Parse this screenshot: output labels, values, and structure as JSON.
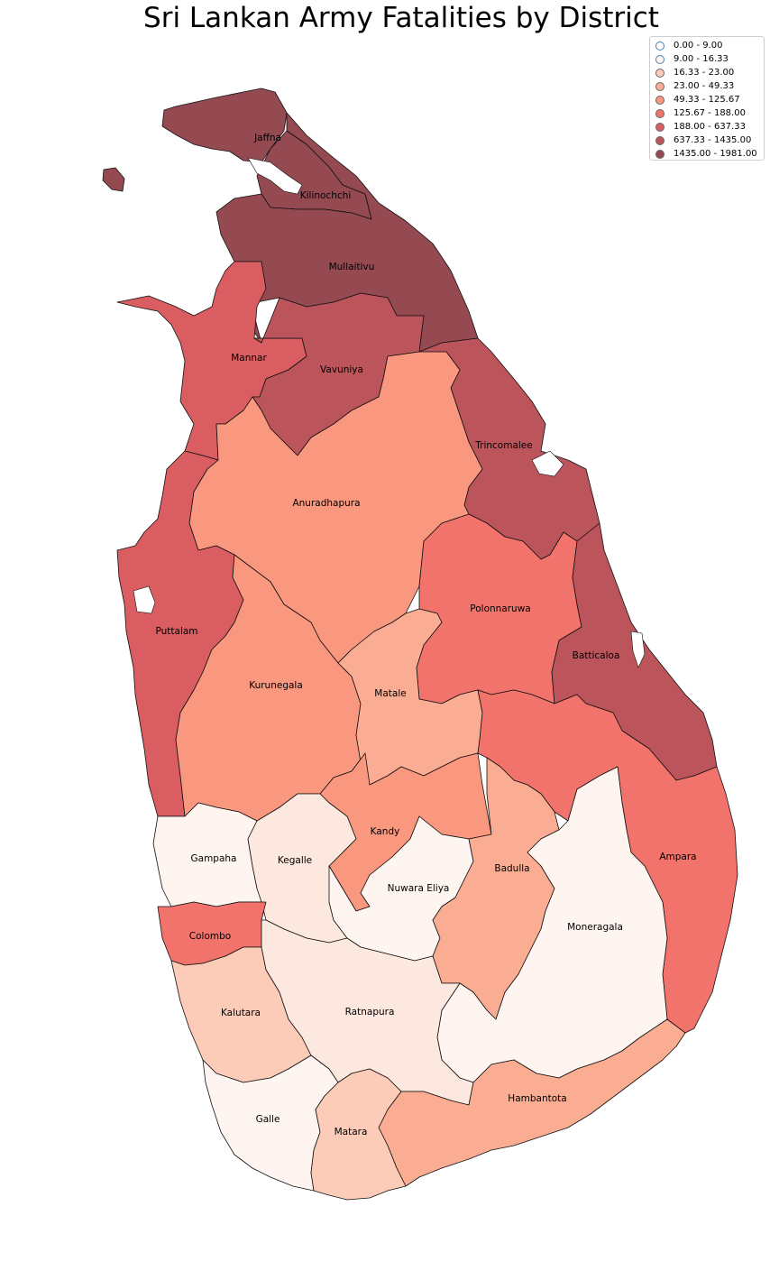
{
  "title": "Sri Lankan Army Fatalities by District",
  "legend": [
    {
      "label": "0.00 - 9.00",
      "color": "#ffffff"
    },
    {
      "label": "9.00 - 16.33",
      "color": "#fff5f0"
    },
    {
      "label": "16.33 - 23.00",
      "color": "#fcccb8"
    },
    {
      "label": "23.00 - 49.33",
      "color": "#fbad93"
    },
    {
      "label": "49.33 - 125.67",
      "color": "#fa977f"
    },
    {
      "label": "125.67 - 188.00",
      "color": "#f2736b"
    },
    {
      "label": "188.00 - 637.33",
      "color": "#da5d62"
    },
    {
      "label": "637.33 - 1435.00",
      "color": "#bc555b"
    },
    {
      "label": "1435.00 - 1981.00",
      "color": "#954a52"
    }
  ],
  "districts": {
    "jaffna": {
      "name": "Jaffna",
      "color": "#954a52"
    },
    "kilinochchi": {
      "name": "Kilinochchi",
      "color": "#954a52"
    },
    "mullaitivu": {
      "name": "Mullaitivu",
      "color": "#954a52"
    },
    "mannar": {
      "name": "Mannar",
      "color": "#da5d62"
    },
    "vavuniya": {
      "name": "Vavuniya",
      "color": "#bc555b"
    },
    "trincomalee": {
      "name": "Trincomalee",
      "color": "#bc555b"
    },
    "anuradhapura": {
      "name": "Anuradhapura",
      "color": "#fa977f"
    },
    "puttalam": {
      "name": "Puttalam",
      "color": "#da5d62"
    },
    "polonnaruwa": {
      "name": "Polonnaruwa",
      "color": "#f2736b"
    },
    "batticaloa": {
      "name": "Batticaloa",
      "color": "#bc555b"
    },
    "kurunegala": {
      "name": "Kurunegala",
      "color": "#fa977f"
    },
    "matale": {
      "name": "Matale",
      "color": "#fbad93"
    },
    "kandy": {
      "name": "Kandy",
      "color": "#fa977f"
    },
    "ampara": {
      "name": "Ampara",
      "color": "#f2736b"
    },
    "gampaha": {
      "name": "Gampaha",
      "color": "#fff5f0"
    },
    "kegalle": {
      "name": "Kegalle",
      "color": "#fde8df"
    },
    "nuwara_eliya": {
      "name": "Nuwara Eliya",
      "color": "#fff5f0"
    },
    "badulla": {
      "name": "Badulla",
      "color": "#fbad93"
    },
    "moneragala": {
      "name": "Moneragala",
      "color": "#fff5f0"
    },
    "colombo": {
      "name": "Colombo",
      "color": "#f2736b"
    },
    "kalutara": {
      "name": "Kalutara",
      "color": "#fcccb8"
    },
    "ratnapura": {
      "name": "Ratnapura",
      "color": "#fde8df"
    },
    "hambantota": {
      "name": "Hambantota",
      "color": "#fbad93"
    },
    "galle": {
      "name": "Galle",
      "color": "#fff5f0"
    },
    "matara": {
      "name": "Matara",
      "color": "#fcccb8"
    }
  }
}
